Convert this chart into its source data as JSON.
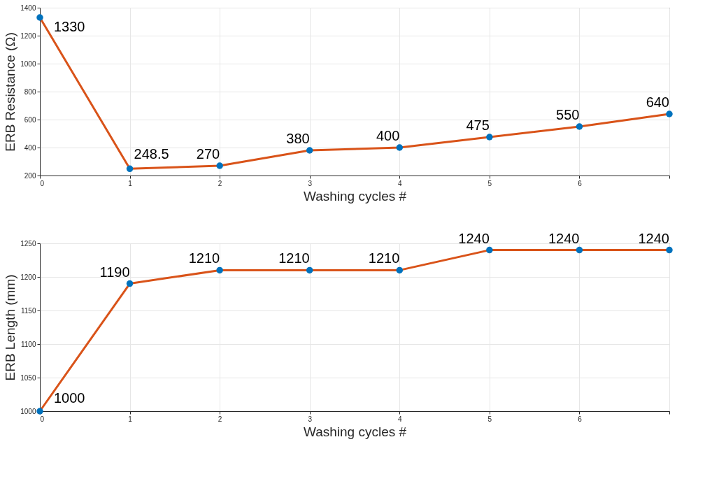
{
  "chart_data": [
    {
      "type": "line",
      "x": [
        0,
        1,
        2,
        3,
        4,
        5,
        6,
        7
      ],
      "xlabel": "Washing cycles #",
      "ylabel": "ERB Resistance (Ω)",
      "series": [
        {
          "color": "#d95319",
          "colors": [
            "#0072bd",
            "#0072bd",
            "#0072bd",
            "#0072bd",
            "#0072bd",
            "#0072bd",
            "#0072bd",
            "#0072bd"
          ],
          "values": [
            1330,
            248.5,
            270,
            380,
            400,
            475,
            550,
            640
          ]
        }
      ],
      "xlim": [
        0,
        7
      ],
      "xticks": [
        0,
        1,
        2,
        3,
        4,
        5,
        6,
        {
          "value": 7,
          "label": null
        }
      ],
      "ylim": [
        200,
        1400
      ],
      "yticks": [
        200,
        400,
        600,
        800,
        1000,
        1200,
        1400
      ],
      "grid": true,
      "marker": "circle",
      "data_labels": true
    },
    {
      "type": "line",
      "x": [
        0,
        1,
        2,
        3,
        4,
        5,
        6,
        7
      ],
      "xlabel": "Washing cycles #",
      "ylabel": "ERB Length (mm)",
      "series": [
        {
          "color": "#d95319",
          "colors": [
            "#0072bd",
            "#0072bd",
            "#0072bd",
            "#0072bd",
            "#0072bd",
            "#0072bd",
            "#0072bd",
            "#0072bd"
          ],
          "values": [
            1000,
            1190,
            1210,
            1210,
            1210,
            1240,
            1240,
            1240
          ]
        }
      ],
      "xlim": [
        0,
        7
      ],
      "xticks": [
        0,
        1,
        2,
        3,
        4,
        5,
        6,
        {
          "value": 7,
          "label": null
        }
      ],
      "ylim": [
        1000,
        1250
      ],
      "yticks": [
        1000,
        1050,
        1100,
        1150,
        1200,
        1250
      ],
      "grid": true,
      "marker": "circle",
      "data_labels": true
    }
  ]
}
